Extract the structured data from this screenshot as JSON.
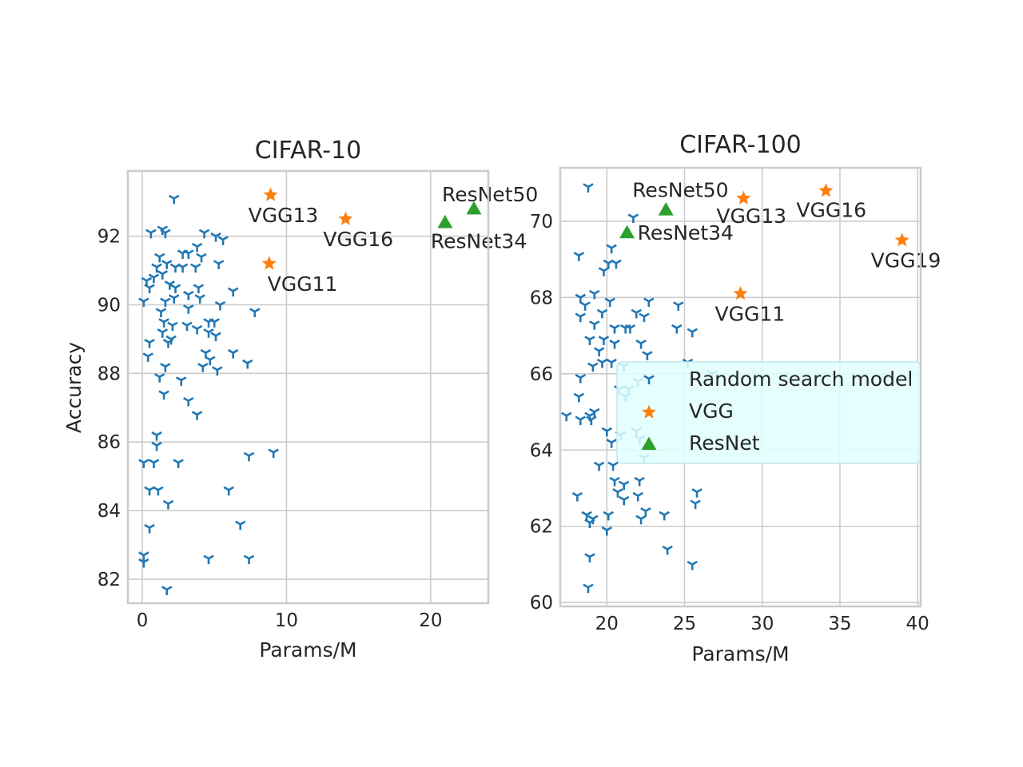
{
  "chart_data": [
    {
      "type": "scatter",
      "title": "CIFAR-10",
      "xlabel": "Params/M",
      "ylabel": "Accuracy",
      "xlim": [
        -1,
        24
      ],
      "ylim": [
        81.3,
        93.9
      ],
      "xticks": [
        0,
        10,
        20
      ],
      "yticks": [
        82,
        84,
        86,
        88,
        90,
        92
      ],
      "grid": true,
      "series": [
        {
          "name": "Random search model",
          "marker": "tri-down",
          "color": "#1f77b4",
          "points": [
            [
              2.2,
              93.1
            ],
            [
              1.4,
              92.2
            ],
            [
              1.6,
              92.1
            ],
            [
              0.6,
              92.1
            ],
            [
              4.3,
              92.1
            ],
            [
              5.1,
              92.0
            ],
            [
              5.6,
              91.9
            ],
            [
              3.8,
              91.7
            ],
            [
              2.8,
              91.5
            ],
            [
              3.2,
              91.5
            ],
            [
              4.1,
              91.4
            ],
            [
              1.2,
              91.4
            ],
            [
              1.7,
              91.2
            ],
            [
              2.3,
              91.1
            ],
            [
              1.0,
              91.1
            ],
            [
              2.8,
              91.1
            ],
            [
              3.7,
              91.1
            ],
            [
              5.3,
              91.2
            ],
            [
              0.8,
              90.8
            ],
            [
              1.4,
              90.9
            ],
            [
              0.3,
              90.7
            ],
            [
              1.9,
              90.6
            ],
            [
              2.3,
              90.5
            ],
            [
              0.5,
              90.5
            ],
            [
              3.9,
              90.5
            ],
            [
              3.2,
              90.3
            ],
            [
              4.0,
              90.2
            ],
            [
              2.2,
              90.2
            ],
            [
              1.6,
              90.1
            ],
            [
              0.1,
              90.1
            ],
            [
              6.3,
              90.4
            ],
            [
              5.4,
              90.0
            ],
            [
              3.2,
              89.9
            ],
            [
              1.3,
              89.8
            ],
            [
              7.8,
              89.8
            ],
            [
              1.5,
              89.5
            ],
            [
              4.6,
              89.5
            ],
            [
              2.1,
              89.4
            ],
            [
              5.0,
              89.5
            ],
            [
              3.1,
              89.4
            ],
            [
              3.8,
              89.3
            ],
            [
              1.4,
              89.2
            ],
            [
              4.6,
              89.2
            ],
            [
              2.0,
              89.0
            ],
            [
              5.1,
              89.1
            ],
            [
              0.5,
              88.9
            ],
            [
              1.8,
              88.9
            ],
            [
              4.4,
              88.6
            ],
            [
              4.7,
              88.4
            ],
            [
              6.3,
              88.6
            ],
            [
              0.4,
              88.5
            ],
            [
              4.2,
              88.2
            ],
            [
              5.2,
              88.1
            ],
            [
              7.3,
              88.3
            ],
            [
              1.6,
              88.2
            ],
            [
              1.2,
              87.9
            ],
            [
              2.7,
              87.8
            ],
            [
              1.5,
              87.4
            ],
            [
              3.2,
              87.2
            ],
            [
              3.8,
              86.8
            ],
            [
              1.0,
              86.2
            ],
            [
              1.0,
              85.9
            ],
            [
              7.4,
              85.6
            ],
            [
              9.1,
              85.7
            ],
            [
              0.1,
              85.4
            ],
            [
              0.8,
              85.4
            ],
            [
              2.5,
              85.4
            ],
            [
              0.5,
              84.6
            ],
            [
              1.1,
              84.6
            ],
            [
              6.0,
              84.6
            ],
            [
              1.8,
              84.2
            ],
            [
              0.5,
              83.5
            ],
            [
              6.8,
              83.6
            ],
            [
              0.1,
              82.7
            ],
            [
              0.1,
              82.5
            ],
            [
              4.6,
              82.6
            ],
            [
              7.4,
              82.6
            ],
            [
              1.7,
              81.7
            ]
          ]
        },
        {
          "name": "VGG",
          "marker": "star",
          "color": "#ff7f0e",
          "points": [
            [
              8.9,
              93.2
            ],
            [
              14.1,
              92.5
            ],
            [
              8.8,
              91.2
            ]
          ],
          "labels": [
            "VGG13",
            "VGG16",
            "VGG11"
          ]
        },
        {
          "name": "ResNet",
          "marker": "triangle",
          "color": "#2ca02c",
          "points": [
            [
              21.0,
              92.4
            ],
            [
              23.0,
              92.8
            ]
          ],
          "labels": [
            "ResNet34",
            "ResNet50"
          ]
        }
      ]
    },
    {
      "type": "scatter",
      "title": "CIFAR-100",
      "xlabel": "Params/M",
      "ylabel": "",
      "xlim": [
        17.0,
        40.2
      ],
      "ylim": [
        59.9,
        71.4
      ],
      "xticks": [
        20,
        25,
        30,
        35,
        40
      ],
      "yticks": [
        60,
        62,
        64,
        66,
        68,
        70
      ],
      "grid": true,
      "legend": {
        "placement": "center-right",
        "entries": [
          "Random search model",
          "VGG",
          "ResNet"
        ]
      },
      "series": [
        {
          "name": "Random search model",
          "marker": "tri-down",
          "color": "#1f77b4",
          "points": [
            [
              18.8,
              70.9
            ],
            [
              21.7,
              70.1
            ],
            [
              18.2,
              69.1
            ],
            [
              20.3,
              69.3
            ],
            [
              20.1,
              68.9
            ],
            [
              20.6,
              68.9
            ],
            [
              19.8,
              68.7
            ],
            [
              19.2,
              68.1
            ],
            [
              18.3,
              68.0
            ],
            [
              20.2,
              67.9
            ],
            [
              22.7,
              67.9
            ],
            [
              18.6,
              67.8
            ],
            [
              24.6,
              67.8
            ],
            [
              18.3,
              67.5
            ],
            [
              21.9,
              67.6
            ],
            [
              22.4,
              67.5
            ],
            [
              19.7,
              67.6
            ],
            [
              19.2,
              67.3
            ],
            [
              20.5,
              67.2
            ],
            [
              21.2,
              67.2
            ],
            [
              21.5,
              67.2
            ],
            [
              24.5,
              67.2
            ],
            [
              25.5,
              67.1
            ],
            [
              18.9,
              66.9
            ],
            [
              19.8,
              66.9
            ],
            [
              20.5,
              66.8
            ],
            [
              22.2,
              66.8
            ],
            [
              19.5,
              66.6
            ],
            [
              22.6,
              66.5
            ],
            [
              19.7,
              66.3
            ],
            [
              20.3,
              66.3
            ],
            [
              21.1,
              66.2
            ],
            [
              19.1,
              66.2
            ],
            [
              25.2,
              66.3
            ],
            [
              26.8,
              66.0
            ],
            [
              18.3,
              65.9
            ],
            [
              22.0,
              65.8
            ],
            [
              21.4,
              65.6
            ],
            [
              20.8,
              65.6
            ],
            [
              18.2,
              65.4
            ],
            [
              21.2,
              65.4
            ],
            [
              19.2,
              65.0
            ],
            [
              18.9,
              64.9
            ],
            [
              17.4,
              64.9
            ],
            [
              18.3,
              64.8
            ],
            [
              19.0,
              64.8
            ],
            [
              21.9,
              64.5
            ],
            [
              20.0,
              64.5
            ],
            [
              20.9,
              64.4
            ],
            [
              22.1,
              64.3
            ],
            [
              20.3,
              64.2
            ],
            [
              22.4,
              63.8
            ],
            [
              19.5,
              63.6
            ],
            [
              20.4,
              63.6
            ],
            [
              21.1,
              63.1
            ],
            [
              20.5,
              63.2
            ],
            [
              20.7,
              62.9
            ],
            [
              22.1,
              63.2
            ],
            [
              25.8,
              62.9
            ],
            [
              18.1,
              62.8
            ],
            [
              21.1,
              62.7
            ],
            [
              22.0,
              62.8
            ],
            [
              25.7,
              62.6
            ],
            [
              22.5,
              62.4
            ],
            [
              18.7,
              62.3
            ],
            [
              19.1,
              62.2
            ],
            [
              18.9,
              62.1
            ],
            [
              20.1,
              62.3
            ],
            [
              23.7,
              62.3
            ],
            [
              22.2,
              62.2
            ],
            [
              20.0,
              61.9
            ],
            [
              23.9,
              61.4
            ],
            [
              18.9,
              61.2
            ],
            [
              25.5,
              61.0
            ],
            [
              18.8,
              60.4
            ]
          ]
        },
        {
          "name": "VGG",
          "marker": "star",
          "color": "#ff7f0e",
          "points": [
            [
              28.8,
              70.6
            ],
            [
              34.1,
              70.8
            ],
            [
              39.0,
              69.5
            ],
            [
              28.6,
              68.1
            ]
          ],
          "labels": [
            "VGG13",
            "VGG16",
            "VGG19",
            "VGG11"
          ]
        },
        {
          "name": "ResNet",
          "marker": "triangle",
          "color": "#2ca02c",
          "points": [
            [
              23.8,
              70.3
            ],
            [
              21.3,
              69.7
            ]
          ],
          "labels": [
            "ResNet50",
            "ResNet34"
          ]
        }
      ]
    }
  ]
}
